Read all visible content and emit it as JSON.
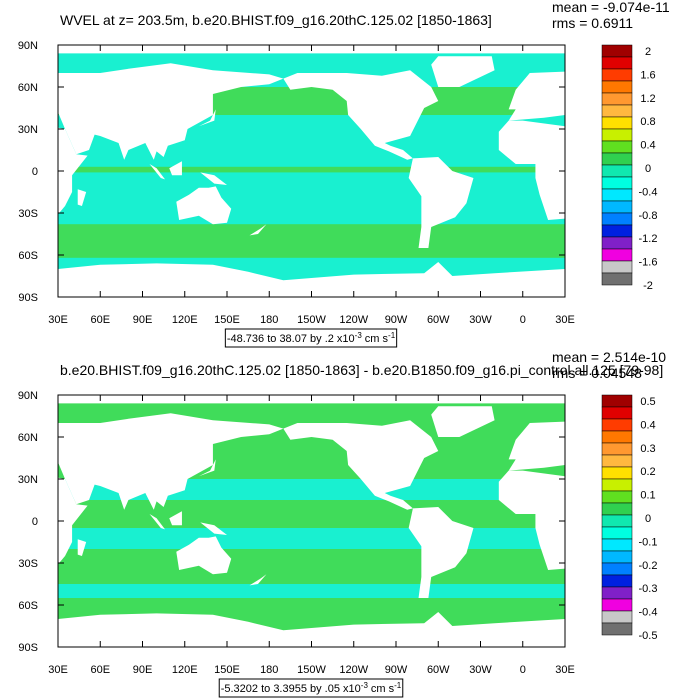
{
  "panels": [
    {
      "title": "WVEL at z= 203.5m, b.e20.BHIST.f09_g16.20thC.125.02 [1850-1863]",
      "mean": "mean = -9.074e-11",
      "rms": "rms = 0.6911",
      "range": {
        "text": "-48.736 to 38.07 by .2 x10",
        "exp": "-3",
        "units": "cm s",
        "units_exp": "-1"
      },
      "colorbar_labels": [
        2,
        1.6,
        1.2,
        0.8,
        0.4,
        0,
        -0.4,
        -0.8,
        -1.2,
        -1.6,
        -2
      ]
    },
    {
      "title": "b.e20.BHIST.f09_g16.20thC.125.02 [1850-1863] - b.e20.B1850.f09_g16.pi_control.all.125 [79-98]",
      "mean": "mean = 2.514e-10",
      "rms": "rms = 0.04548",
      "range": {
        "text": "-5.3202 to 3.3955 by .05 x10",
        "exp": "-3",
        "units": "cm s",
        "units_exp": "-1"
      },
      "colorbar_labels": [
        0.5,
        0.4,
        0.3,
        0.2,
        0.1,
        0,
        -0.1,
        -0.2,
        -0.3,
        -0.4,
        -0.5
      ]
    }
  ],
  "lat_labels": [
    "90N",
    "60N",
    "30N",
    "0",
    "30S",
    "60S",
    "90S"
  ],
  "lon_labels": [
    "30E",
    "60E",
    "90E",
    "120E",
    "150E",
    "180",
    "150W",
    "120W",
    "90W",
    "60W",
    "30W",
    "0",
    "30E"
  ],
  "colorbar_colors": [
    "#a00000",
    "#e00000",
    "#ff3c00",
    "#ff7800",
    "#ff9830",
    "#ffb840",
    "#ffe000",
    "#c8f000",
    "#60e020",
    "#30d050",
    "#10e8b0",
    "#00ffe0",
    "#00e8ff",
    "#00b8ff",
    "#0080ff",
    "#0020e0",
    "#8020c8",
    "#f000e0",
    "#c8c8c8",
    "#707070"
  ]
}
